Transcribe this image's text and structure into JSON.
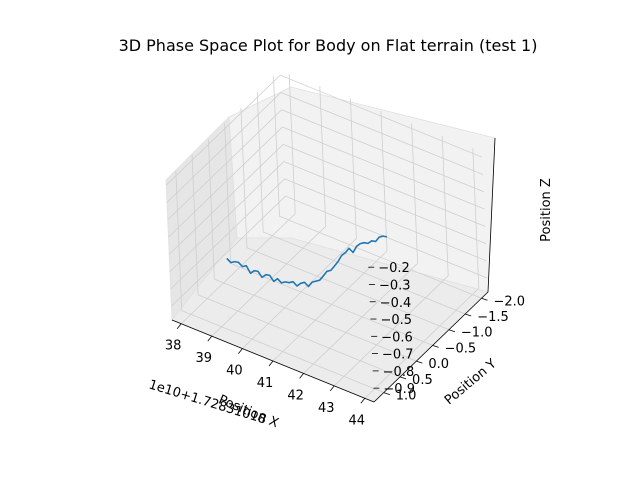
{
  "chart_data": {
    "type": "line",
    "projection": "3d",
    "title": "3D Phase Space Plot for Body on Flat terrain (test 1)",
    "xlabel": "Position X",
    "ylabel": "Position Y",
    "zlabel": "Position Z",
    "x_offset_text": "1e10+1.72831018",
    "xticks": [
      "38",
      "39",
      "40",
      "41",
      "42",
      "43",
      "44"
    ],
    "yticks": [
      "1.0",
      "0.5",
      "0.0",
      "−0.5",
      "−1.0",
      "−1.5",
      "−2.0"
    ],
    "zticks": [
      "−0.2",
      "−0.3",
      "−0.4",
      "−0.5",
      "−0.6",
      "−0.7",
      "−0.8",
      "−0.9"
    ],
    "xlim": [
      37.7,
      44.3
    ],
    "ylim": [
      -2.2,
      1.3
    ],
    "zlim": [
      -0.98,
      -0.17
    ],
    "grid": true,
    "series": [
      {
        "color": "#1f77b4",
        "points": [
          {
            "x": 37.75,
            "y": -0.35,
            "z": -0.92
          },
          {
            "x": 37.9,
            "y": -0.33,
            "z": -0.93
          },
          {
            "x": 38.05,
            "y": -0.31,
            "z": -0.91
          },
          {
            "x": 38.2,
            "y": -0.29,
            "z": -0.9
          },
          {
            "x": 38.35,
            "y": -0.27,
            "z": -0.91
          },
          {
            "x": 38.5,
            "y": -0.25,
            "z": -0.89
          },
          {
            "x": 38.65,
            "y": -0.23,
            "z": -0.92
          },
          {
            "x": 38.8,
            "y": -0.21,
            "z": -0.89
          },
          {
            "x": 38.95,
            "y": -0.19,
            "z": -0.88
          },
          {
            "x": 39.1,
            "y": -0.17,
            "z": -0.9
          },
          {
            "x": 39.25,
            "y": -0.15,
            "z": -0.87
          },
          {
            "x": 39.4,
            "y": -0.13,
            "z": -0.86
          },
          {
            "x": 39.55,
            "y": -0.11,
            "z": -0.88
          },
          {
            "x": 39.7,
            "y": -0.09,
            "z": -0.85
          },
          {
            "x": 39.85,
            "y": -0.07,
            "z": -0.86
          },
          {
            "x": 40.0,
            "y": -0.05,
            "z": -0.84
          },
          {
            "x": 40.15,
            "y": -0.03,
            "z": -0.83
          },
          {
            "x": 40.3,
            "y": -0.01,
            "z": -0.81
          },
          {
            "x": 40.45,
            "y": 0.01,
            "z": -0.82
          },
          {
            "x": 40.6,
            "y": 0.03,
            "z": -0.79
          },
          {
            "x": 40.75,
            "y": 0.05,
            "z": -0.77
          },
          {
            "x": 40.9,
            "y": 0.07,
            "z": -0.78
          },
          {
            "x": 41.05,
            "y": 0.09,
            "z": -0.74
          },
          {
            "x": 41.2,
            "y": 0.11,
            "z": -0.72
          },
          {
            "x": 41.35,
            "y": 0.13,
            "z": -0.7
          },
          {
            "x": 41.5,
            "y": 0.15,
            "z": -0.66
          },
          {
            "x": 41.65,
            "y": 0.17,
            "z": -0.62
          },
          {
            "x": 41.8,
            "y": 0.19,
            "z": -0.6
          },
          {
            "x": 41.95,
            "y": 0.21,
            "z": -0.56
          },
          {
            "x": 42.1,
            "y": 0.23,
            "z": -0.52
          },
          {
            "x": 42.25,
            "y": 0.25,
            "z": -0.47
          },
          {
            "x": 42.4,
            "y": 0.27,
            "z": -0.44
          },
          {
            "x": 42.55,
            "y": 0.29,
            "z": -0.4
          },
          {
            "x": 42.7,
            "y": 0.31,
            "z": -0.41
          },
          {
            "x": 42.85,
            "y": 0.33,
            "z": -0.36
          },
          {
            "x": 43.0,
            "y": 0.35,
            "z": -0.33
          },
          {
            "x": 43.15,
            "y": 0.37,
            "z": -0.31
          },
          {
            "x": 43.3,
            "y": 0.39,
            "z": -0.3
          },
          {
            "x": 43.45,
            "y": 0.41,
            "z": -0.27
          },
          {
            "x": 43.6,
            "y": 0.43,
            "z": -0.26
          },
          {
            "x": 43.75,
            "y": 0.45,
            "z": -0.22
          },
          {
            "x": 43.9,
            "y": 0.47,
            "z": -0.2
          },
          {
            "x": 44.05,
            "y": 0.49,
            "z": -0.19
          }
        ]
      }
    ]
  }
}
